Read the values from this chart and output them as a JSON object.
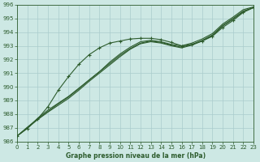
{
  "title": "Graphe pression niveau de la mer (hPa)",
  "background_color": "#cde8e4",
  "grid_color": "#aacccc",
  "line_color": "#2d5c2d",
  "xlim": [
    0,
    23
  ],
  "ylim": [
    986,
    996
  ],
  "xtick_vals": [
    0,
    1,
    2,
    3,
    4,
    5,
    6,
    7,
    8,
    9,
    10,
    11,
    12,
    13,
    14,
    15,
    16,
    17,
    18,
    19,
    20,
    21,
    22,
    23
  ],
  "ytick_vals": [
    986,
    987,
    988,
    989,
    990,
    991,
    992,
    993,
    994,
    995,
    996
  ],
  "line_smooth1": [
    986.4,
    987.0,
    987.7,
    988.3,
    988.8,
    989.3,
    989.9,
    990.5,
    991.1,
    991.8,
    992.4,
    992.9,
    993.3,
    993.4,
    993.3,
    993.1,
    993.0,
    993.2,
    993.5,
    993.9,
    994.6,
    995.1,
    995.65,
    995.85
  ],
  "line_smooth2": [
    986.4,
    987.0,
    987.6,
    988.15,
    988.65,
    989.15,
    989.75,
    990.4,
    991.0,
    991.6,
    992.2,
    992.75,
    993.15,
    993.3,
    993.2,
    993.0,
    992.85,
    993.05,
    993.35,
    993.75,
    994.45,
    994.95,
    995.5,
    995.8
  ],
  "line_smooth3": [
    986.4,
    987.05,
    987.65,
    988.2,
    988.75,
    989.25,
    989.85,
    990.5,
    991.1,
    991.7,
    992.3,
    992.8,
    993.2,
    993.35,
    993.25,
    993.05,
    992.9,
    993.1,
    993.4,
    993.8,
    994.5,
    995.0,
    995.55,
    995.8
  ],
  "line_marked_x": [
    0,
    1,
    2,
    3,
    4,
    5,
    6,
    7,
    8,
    9,
    10,
    11,
    12,
    13,
    14,
    15,
    16,
    17,
    18,
    19,
    20,
    21,
    22,
    23
  ],
  "line_marked_y": [
    986.4,
    986.95,
    987.65,
    988.55,
    989.75,
    990.75,
    991.65,
    992.35,
    992.85,
    993.2,
    993.35,
    993.5,
    993.55,
    993.55,
    993.45,
    993.25,
    993.0,
    993.1,
    993.35,
    993.7,
    994.35,
    994.85,
    995.45,
    995.8
  ]
}
